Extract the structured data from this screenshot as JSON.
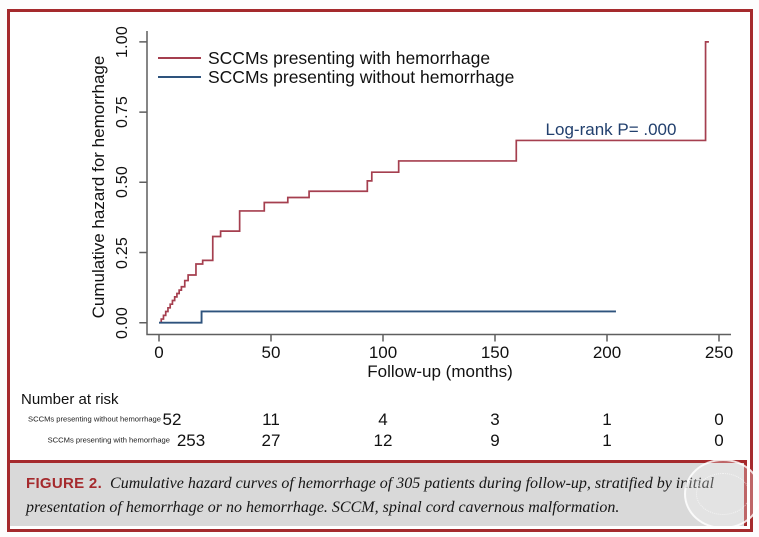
{
  "colors": {
    "frame": "#A52A2D",
    "axis": "#5F5F5F",
    "annotation_text": "#22406E",
    "caption_bg": "#D9D9D9",
    "with_hemorrhage": "#A53F4F",
    "without_hemorrhage": "#2E537D"
  },
  "chart_data": {
    "type": "line",
    "subtype": "step-cumulative-hazard",
    "title": "",
    "xlabel": "Follow-up (months)",
    "ylabel": "Cumulative hazard for hemorrhage",
    "xlim": [
      0,
      262
    ],
    "ylim": [
      0,
      1.04
    ],
    "grid": false,
    "legend_position": "top-left-inside",
    "x_ticks": [
      {
        "label": "0",
        "value": 0
      },
      {
        "label": "50",
        "value": 50
      },
      {
        "label": "100",
        "value": 100
      },
      {
        "label": "150",
        "value": 150
      },
      {
        "label": "200",
        "value": 200
      },
      {
        "label": "250",
        "value": 250
      }
    ],
    "y_ticks": [
      {
        "label": "0.00",
        "value": 0
      },
      {
        "label": "0.25",
        "value": 0.25
      },
      {
        "label": "0.50",
        "value": 0.5
      },
      {
        "label": "0.75",
        "value": 0.75
      },
      {
        "label": "1.00",
        "value": 1
      }
    ],
    "annotation": "Log-rank P= .000",
    "series": [
      {
        "name": "SCCMs presenting with hemorrhage",
        "color": "#A53F4F",
        "step_points": [
          [
            0,
            0
          ],
          [
            1,
            0.013
          ],
          [
            2,
            0.026
          ],
          [
            3,
            0.04
          ],
          [
            4,
            0.053
          ],
          [
            5,
            0.066
          ],
          [
            6,
            0.079
          ],
          [
            7,
            0.092
          ],
          [
            8,
            0.104
          ],
          [
            9,
            0.116
          ],
          [
            10,
            0.128
          ],
          [
            11.5,
            0.15
          ],
          [
            13,
            0.17
          ],
          [
            16.5,
            0.209
          ],
          [
            19.5,
            0.222
          ],
          [
            24,
            0.307
          ],
          [
            27.5,
            0.326
          ],
          [
            36,
            0.398
          ],
          [
            47,
            0.428
          ],
          [
            57.5,
            0.446
          ],
          [
            67,
            0.468
          ],
          [
            93,
            0.505
          ],
          [
            95,
            0.536
          ],
          [
            107,
            0.576
          ],
          [
            159.5,
            0.649
          ],
          [
            244,
            1.0
          ]
        ],
        "end_x": 245.5
      },
      {
        "name": "SCCMs presenting without hemorrhage",
        "color": "#2E537D",
        "step_points": [
          [
            0,
            0
          ],
          [
            19,
            0.04
          ]
        ],
        "end_x": 204
      }
    ]
  },
  "risk_table": {
    "heading": "Number at risk",
    "columns_months": [
      0,
      50,
      100,
      150,
      200,
      250
    ],
    "rows": [
      {
        "label": "SCCMs presenting without hemorrhage",
        "values": [
          "52",
          "11",
          "4",
          "3",
          "1",
          "0"
        ]
      },
      {
        "label": "SCCMs presenting with hemorrhage",
        "values": [
          "253",
          "27",
          "12",
          "9",
          "1",
          "0"
        ]
      }
    ]
  },
  "caption": {
    "label": "FIGURE 2.",
    "text": "Cumulative hazard curves of hemorrhage of 305 patients during follow-up, stratified by initial presentation of hemorrhage or no hemorrhage. SCCM, spinal cord cavernous malformation."
  }
}
